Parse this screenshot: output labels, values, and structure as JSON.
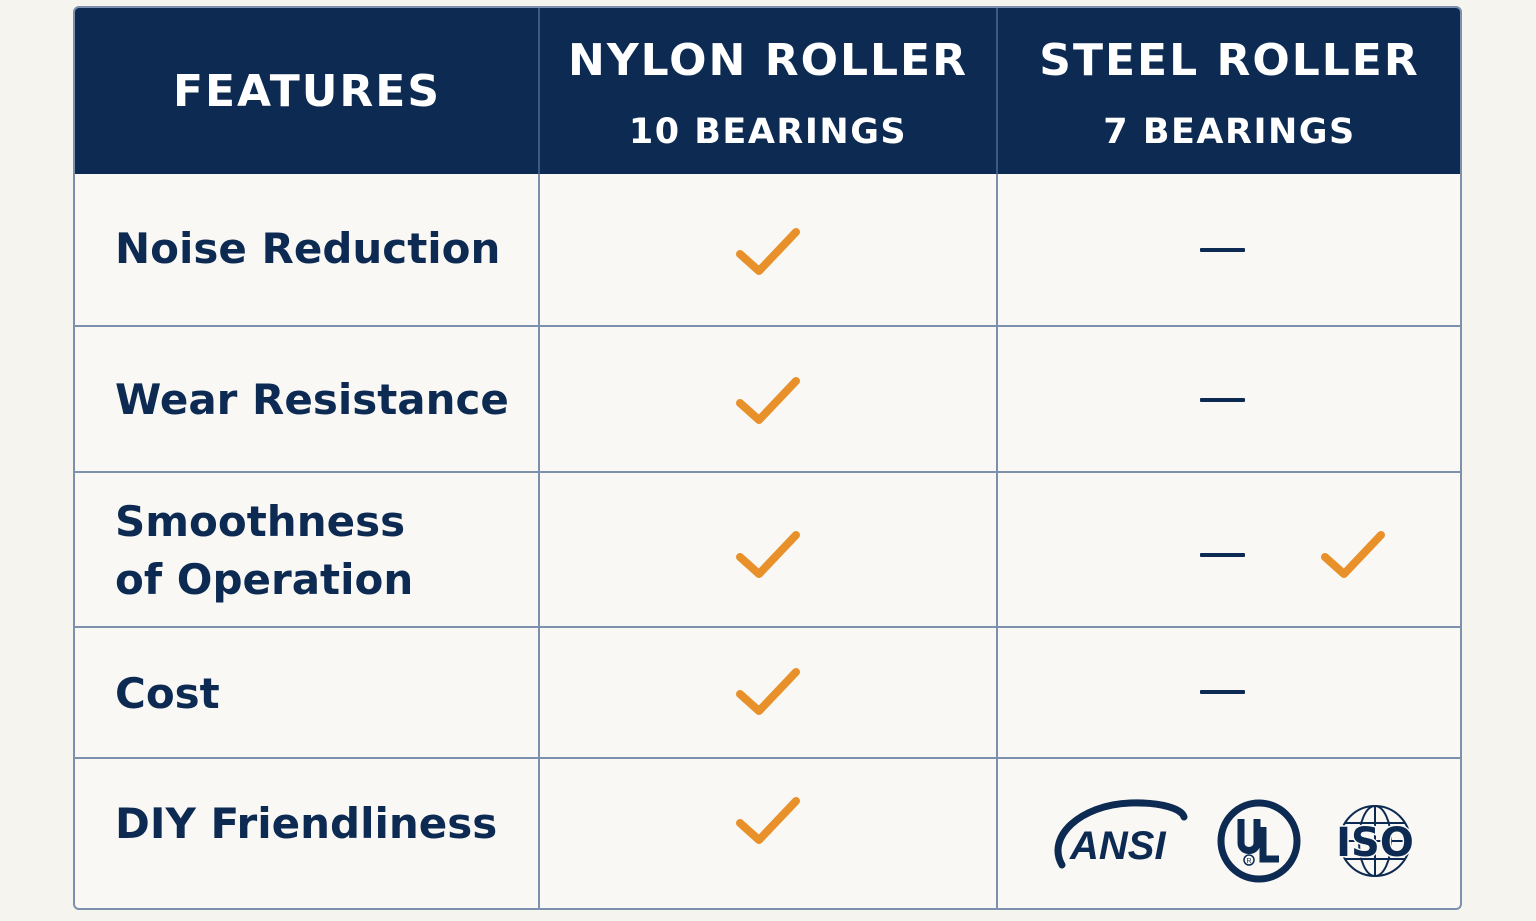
{
  "header": {
    "features": "FEATURES",
    "col1_title": "NYLON ROLLER",
    "col1_sub": "10 BEARINGS",
    "col2_title": "STEEL ROLLER",
    "col2_sub": "7 BEARINGS"
  },
  "rows": [
    {
      "label": "Noise Reduction",
      "nylon": "check",
      "steel": "dash"
    },
    {
      "label": "Wear Resistance",
      "nylon": "check",
      "steel": "dash"
    },
    {
      "label_line1": "Smoothness",
      "label_line2": "of Operation",
      "nylon": "check",
      "steel": "dash+check"
    },
    {
      "label": "Cost",
      "nylon": "check",
      "steel": "dash"
    },
    {
      "label": "DIY Friendliness",
      "nylon": "check",
      "steel": "logos"
    }
  ],
  "logos": {
    "ansi": "ANSI",
    "ul": "UL",
    "iso": "ISO"
  },
  "colors": {
    "navy": "#0c2a52",
    "orange": "#e8902a",
    "border": "#7d90ad",
    "background": "#f6f4ee"
  },
  "icons": {
    "check": "check-icon",
    "dash": "dash-icon"
  }
}
